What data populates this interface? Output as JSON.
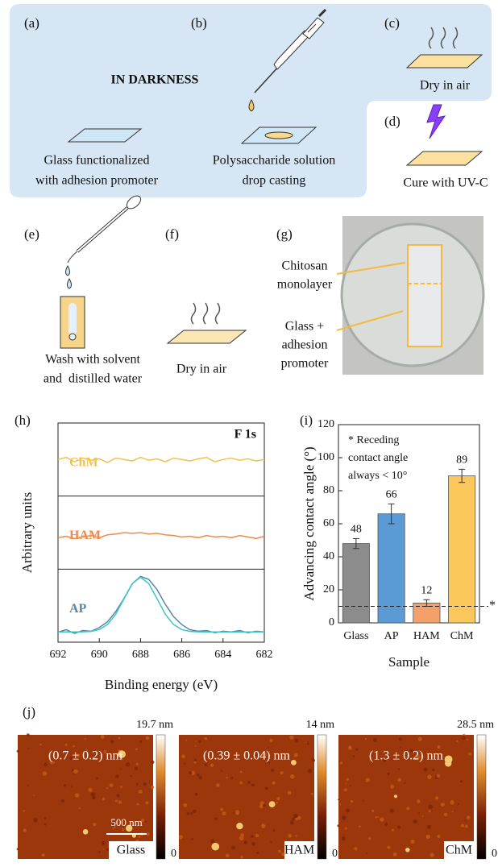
{
  "panels": {
    "a": {
      "label": "(a)",
      "caption": [
        "Glass functionalized",
        "with adhesion promoter"
      ]
    },
    "b": {
      "label": "(b)",
      "caption": [
        "Polysaccharide solution",
        "drop casting"
      ]
    },
    "c": {
      "label": "(c)",
      "caption": [
        "Dry in air"
      ]
    },
    "d": {
      "label": "(d)",
      "caption": [
        "Cure with UV-C"
      ]
    },
    "e": {
      "label": "(e)",
      "caption": [
        "Wash with solvent",
        "and  distilled water"
      ]
    },
    "f": {
      "label": "(f)",
      "caption": [
        "Dry in air"
      ]
    },
    "g": {
      "label": "(g)",
      "annotations": [
        [
          "Chitosan",
          "monolayer"
        ],
        [
          "Glass +",
          "adhesion",
          "promoter"
        ]
      ]
    },
    "h": {
      "label": "(h)"
    },
    "i": {
      "label": "(i)"
    },
    "j": {
      "label": "(j)"
    }
  },
  "darkness_note": "IN DARKNESS",
  "chart_data": [
    {
      "type": "line",
      "annotation": "F 1s",
      "xlabel": "Binding energy (eV)",
      "ylabel": "Arbitrary units",
      "x": [
        692,
        691.6,
        691.2,
        690.8,
        690.4,
        690,
        689.6,
        689.2,
        688.8,
        688.4,
        688,
        687.6,
        687.2,
        686.8,
        686.4,
        686,
        685.6,
        685.2,
        684.8,
        684.4,
        684,
        683.6,
        683.2,
        682.8,
        682.4,
        682
      ],
      "xlim": [
        692,
        682
      ],
      "xticks": [
        692,
        690,
        688,
        686,
        684,
        682
      ],
      "ylim": [
        0,
        1
      ],
      "series": [
        {
          "name": "ChM",
          "color": "#f2c14e",
          "values": [
            0.5,
            0.53,
            0.47,
            0.52,
            0.49,
            0.51,
            0.46,
            0.52,
            0.5,
            0.48,
            0.53,
            0.49,
            0.51,
            0.47,
            0.52,
            0.5,
            0.48,
            0.51,
            0.53,
            0.47,
            0.5,
            0.52,
            0.49,
            0.51,
            0.48,
            0.5
          ]
        },
        {
          "name": "HAM",
          "color": "#f08a4b",
          "values": [
            0.43,
            0.45,
            0.42,
            0.44,
            0.46,
            0.43,
            0.47,
            0.48,
            0.5,
            0.49,
            0.5,
            0.48,
            0.49,
            0.47,
            0.46,
            0.44,
            0.45,
            0.43,
            0.46,
            0.44,
            0.45,
            0.43,
            0.46,
            0.44,
            0.42,
            0.45
          ]
        },
        {
          "name": "AP",
          "color": "#5a86a8",
          "values": [
            0.14,
            0.17,
            0.12,
            0.16,
            0.15,
            0.2,
            0.28,
            0.42,
            0.6,
            0.8,
            0.9,
            0.86,
            0.72,
            0.52,
            0.35,
            0.24,
            0.17,
            0.15,
            0.16,
            0.13,
            0.15,
            0.14,
            0.16,
            0.13,
            0.15,
            0.14
          ],
          "fit_color": "#3ec6c6",
          "fit_values": [
            0.14,
            0.14,
            0.14,
            0.142,
            0.148,
            0.173,
            0.241,
            0.384,
            0.595,
            0.802,
            0.89,
            0.802,
            0.595,
            0.384,
            0.241,
            0.173,
            0.148,
            0.142,
            0.14,
            0.14,
            0.14,
            0.14,
            0.14,
            0.14,
            0.14,
            0.14
          ]
        }
      ]
    },
    {
      "type": "bar",
      "xlabel": "Sample",
      "ylabel": "Advancing contact angle (°)",
      "annotation": [
        "* Receding",
        "contact angle",
        "always < 10°"
      ],
      "categories": [
        "Glass",
        "AP",
        "HAM",
        "ChM"
      ],
      "values": [
        48,
        66,
        12,
        89
      ],
      "errors": [
        3,
        6,
        2,
        4
      ],
      "colors": [
        "#8c8c8c",
        "#5b9bd5",
        "#f4a06b",
        "#fcc85c"
      ],
      "ylim": [
        0,
        120
      ],
      "yticks": [
        0,
        20,
        40,
        60,
        80,
        100,
        120
      ],
      "reference_line": {
        "value": 10,
        "label": "*"
      }
    }
  ],
  "afm_images": [
    {
      "max": "19.7 nm",
      "min": "0",
      "roughness": "(0.7 ± 0.2) nm",
      "sample": "Glass",
      "scale_bar": "500 nm"
    },
    {
      "max": "14 nm",
      "min": "0",
      "roughness": "(0.39 ± 0.04) nm",
      "sample": "HAM"
    },
    {
      "max": "28.5 nm",
      "min": "0",
      "roughness": "(1.3 ± 0.2) nm",
      "sample": "ChM"
    }
  ]
}
